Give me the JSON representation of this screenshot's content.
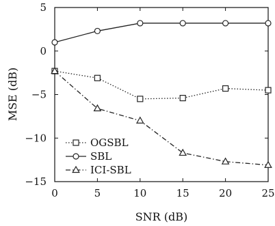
{
  "chart_data": {
    "type": "line",
    "title": "",
    "xlabel": "SNR (dB)",
    "ylabel": "MSE (dB)",
    "x": [
      0,
      5,
      10,
      15,
      20,
      25
    ],
    "xticks": [
      "0",
      "5",
      "10",
      "15",
      "20",
      "25"
    ],
    "yticks": [
      "5",
      "0",
      "−5",
      "−10",
      "−15"
    ],
    "xlim": [
      0,
      25
    ],
    "ylim": [
      -15,
      5
    ],
    "grid": false,
    "legend_position": "bottom-left",
    "series": [
      {
        "name": "OGSBL",
        "values": [
          -2.3,
          -3.1,
          -5.5,
          -5.4,
          -4.3,
          -4.5
        ],
        "marker": "square",
        "dash": "dotted",
        "color": "#222222"
      },
      {
        "name": "SBL",
        "values": [
          1.0,
          2.3,
          3.2,
          3.2,
          3.2,
          3.2
        ],
        "marker": "circle",
        "dash": "solid",
        "color": "#222222"
      },
      {
        "name": "ICI-SBL",
        "values": [
          -2.3,
          -6.6,
          -8.0,
          -11.7,
          -12.7,
          -13.1
        ],
        "marker": "triangle",
        "dash": "dashdot",
        "color": "#222222"
      }
    ]
  }
}
